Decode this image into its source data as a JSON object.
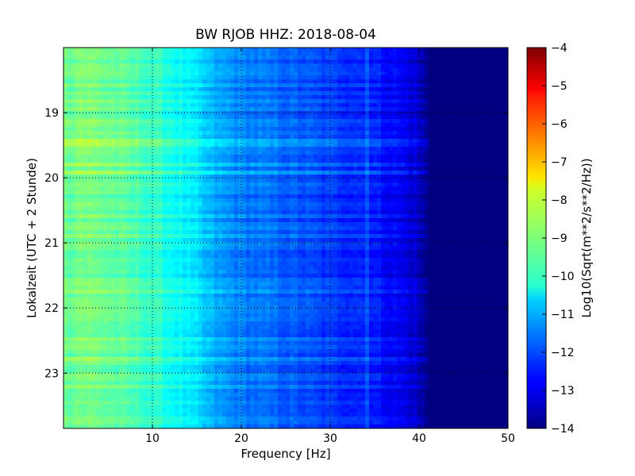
{
  "chart_data": {
    "type": "heatmap",
    "title": "BW RJOB HHZ: 2018-08-04",
    "xlabel": "Frequency [Hz]",
    "ylabel": "Lokalzeit (UTC + 2 Stunde)",
    "xlim": [
      0,
      50
    ],
    "ylim": [
      18.0,
      23.85
    ],
    "x_ticks": [
      10,
      20,
      30,
      40,
      50
    ],
    "y_ticks": [
      19,
      20,
      21,
      22,
      23
    ],
    "y_inverted": true,
    "grid": true,
    "colormap": "jet",
    "colorbar": {
      "label": "Log10(Sqrt(m**2/s**2/Hz))",
      "range": [
        -14,
        -4
      ],
      "ticks": [
        -4,
        -5,
        -6,
        -7,
        -8,
        -9,
        -10,
        -11,
        -12,
        -13,
        -14
      ]
    },
    "frequency_profile": {
      "frequency_hz": [
        0,
        2,
        5,
        10,
        13,
        15,
        17,
        20,
        25,
        30,
        33,
        35,
        38,
        40,
        41,
        42,
        50
      ],
      "log10_amplitude": [
        -9.2,
        -9.0,
        -9.2,
        -9.7,
        -10.2,
        -10.6,
        -11.1,
        -11.5,
        -11.8,
        -12.2,
        -12.3,
        -12.5,
        -12.9,
        -13.3,
        -14.0,
        -14.0,
        -14.0
      ]
    },
    "spectral_line_hz": 34.3
  }
}
